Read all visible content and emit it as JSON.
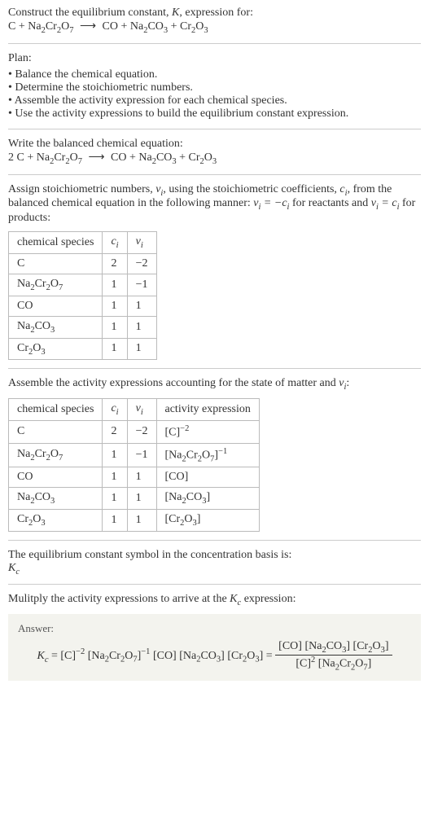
{
  "intro": {
    "line1_pre": "Construct the equilibrium constant, ",
    "line1_K": "K",
    "line1_post": ", expression for:",
    "eq_left": "C + Na",
    "eq_right": " CO + Na"
  },
  "plan": {
    "heading": "Plan:",
    "items": [
      "Balance the chemical equation.",
      "Determine the stoichiometric numbers.",
      "Assemble the activity expression for each chemical species.",
      "Use the activity expressions to build the equilibrium constant expression."
    ]
  },
  "balanced": {
    "heading": "Write the balanced chemical equation:"
  },
  "stoich": {
    "text_a": "Assign stoichiometric numbers, ",
    "text_b": ", using the stoichiometric coefficients, ",
    "text_c": ", from the balanced chemical equation in the following manner: ",
    "text_d": " for reactants and ",
    "text_e": " for products:"
  },
  "table1": {
    "headers": [
      "chemical species",
      "cᵢ",
      "νᵢ"
    ],
    "rows": [
      [
        "C",
        "2",
        "−2"
      ],
      [
        "Na₂Cr₂O₇",
        "1",
        "−1"
      ],
      [
        "CO",
        "1",
        "1"
      ],
      [
        "Na₂CO₃",
        "1",
        "1"
      ],
      [
        "Cr₂O₃",
        "1",
        "1"
      ]
    ]
  },
  "assemble": {
    "text_a": "Assemble the activity expressions accounting for the state of matter and ",
    "text_b": ":"
  },
  "table2": {
    "headers": [
      "chemical species",
      "cᵢ",
      "νᵢ",
      "activity expression"
    ],
    "rows": [
      {
        "sp": "C",
        "c": "2",
        "v": "−2",
        "ae_base": "[C]",
        "ae_exp": "−2"
      },
      {
        "sp": "Na₂Cr₂O₇",
        "c": "1",
        "v": "−1",
        "ae_base": "[Na₂Cr₂O₇]",
        "ae_exp": "−1"
      },
      {
        "sp": "CO",
        "c": "1",
        "v": "1",
        "ae_base": "[CO]",
        "ae_exp": ""
      },
      {
        "sp": "Na₂CO₃",
        "c": "1",
        "v": "1",
        "ae_base": "[Na₂CO₃]",
        "ae_exp": ""
      },
      {
        "sp": "Cr₂O₃",
        "c": "1",
        "v": "1",
        "ae_base": "[Cr₂O₃]",
        "ae_exp": ""
      }
    ]
  },
  "conc_basis": {
    "line": "The equilibrium constant symbol in the concentration basis is:",
    "sym": "K",
    "sub": "c"
  },
  "multiply": {
    "text_a": "Mulitply the activity expressions to arrive at the ",
    "text_b": " expression:"
  },
  "answer": {
    "label": "Answer:",
    "num": "[CO] [Na₂CO₃] [Cr₂O₃]",
    "den": "[C]² [Na₂Cr₂O₇]"
  },
  "arrow": "⟶",
  "colors": {
    "rule": "#cccccc",
    "answer_bg": "#f3f3ee"
  }
}
